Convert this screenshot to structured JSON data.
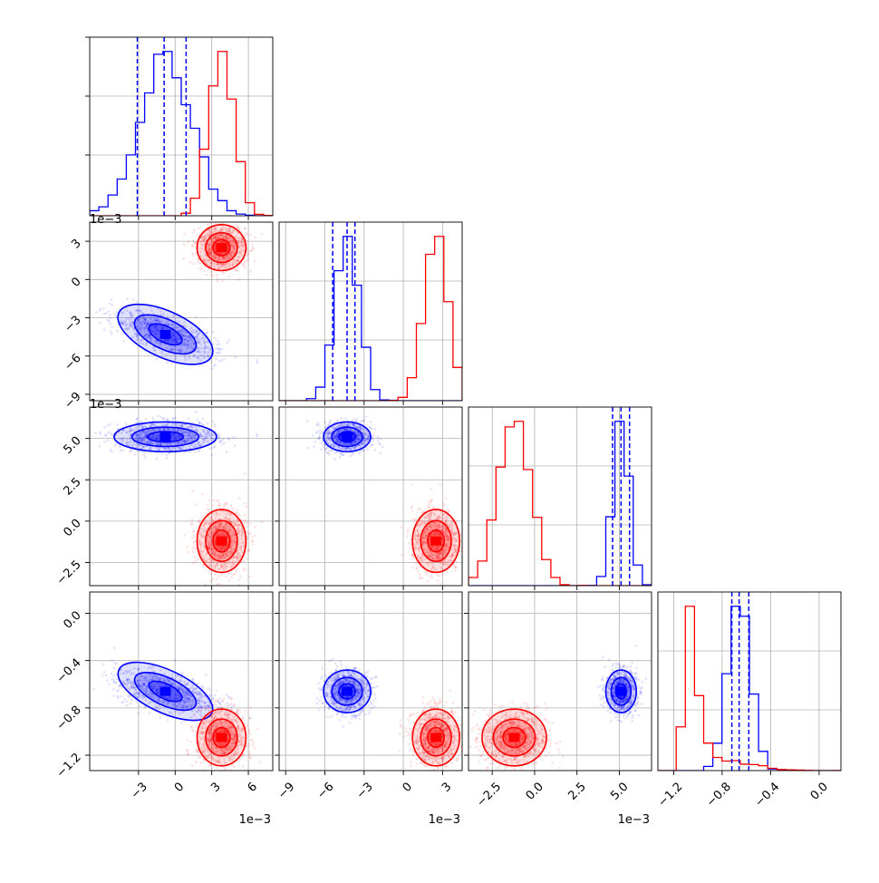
{
  "chart_data": {
    "type": "corner",
    "params": [
      {
        "ticks": [
          -3,
          0,
          3,
          6
        ],
        "tick_labels": [
          "−3",
          "0",
          "3",
          "6"
        ],
        "range": [
          -7.0,
          8.0
        ],
        "offset_text": "1e−3"
      },
      {
        "ticks": [
          -9,
          -6,
          -3,
          0,
          3
        ],
        "tick_labels": [
          "−9",
          "−6",
          "−3",
          "0",
          "3"
        ],
        "range": [
          -9.5,
          4.5
        ],
        "offset_text": "1e−3"
      },
      {
        "ticks": [
          -2.5,
          0.0,
          2.5,
          5.0
        ],
        "tick_labels": [
          "−2.5",
          "0.0",
          "2.5",
          "5.0"
        ],
        "range": [
          -3.9,
          6.9
        ],
        "offset_text": "1e−3"
      },
      {
        "ticks": [
          -1.2,
          -0.8,
          -0.4,
          0.0
        ],
        "tick_labels": [
          "−1.2",
          "−0.8",
          "−0.4",
          "0.0"
        ],
        "range": [
          -1.33,
          0.18
        ],
        "offset_text": ""
      }
    ],
    "series": [
      {
        "color": "#0000ff",
        "means": [
          -0.8,
          -4.3,
          5.1,
          -0.66
        ],
        "sd": [
          2.1,
          0.9,
          0.45,
          0.09
        ],
        "quantiles": [
          [
            -3.1,
            -0.9,
            0.9
          ],
          [
            -5.4,
            -4.3,
            -3.7
          ],
          [
            4.6,
            5.1,
            5.6
          ],
          [
            -0.72,
            -0.66,
            -0.58
          ]
        ]
      },
      {
        "color": "#ff0000",
        "means": [
          3.8,
          2.5,
          -1.2,
          -1.05
        ],
        "sd": [
          1.0,
          0.9,
          0.95,
          0.12
        ],
        "quantiles": [
          [],
          [],
          [],
          []
        ]
      }
    ],
    "grid": true,
    "legend": "none"
  }
}
